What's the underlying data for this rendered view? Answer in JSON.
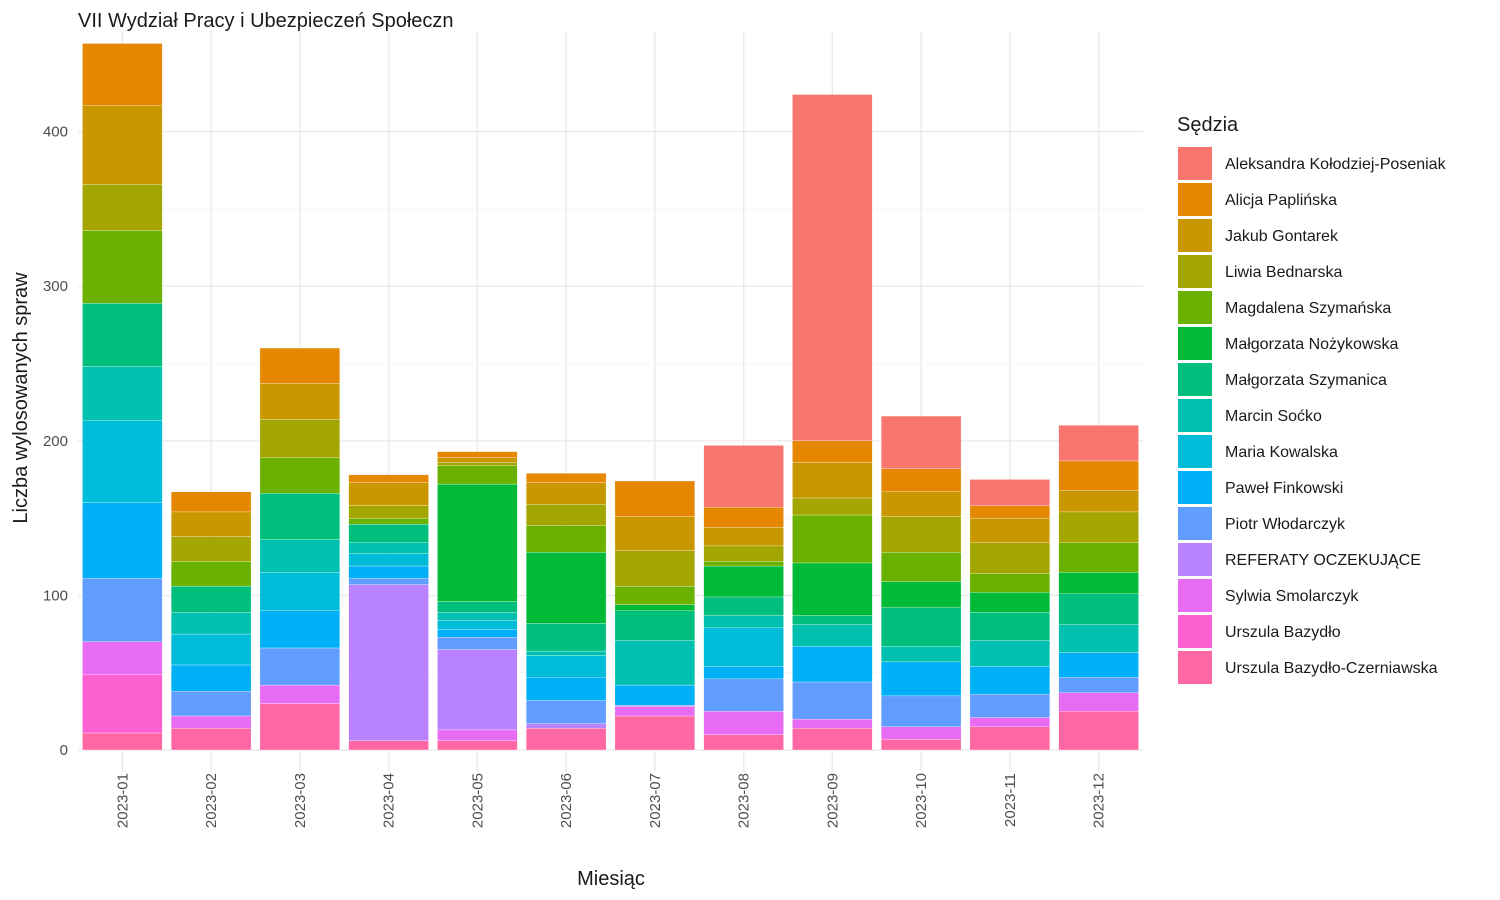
{
  "chart_data": {
    "type": "bar",
    "stacked": true,
    "title": "VII Wydział Pracy i Ubezpieczeń Społeczn",
    "xlabel": "Miesiąc",
    "ylabel": "Liczba wylosowanych spraw",
    "ylim": [
      0,
      460
    ],
    "yticks": [
      0,
      100,
      200,
      300,
      400
    ],
    "grid": true,
    "legend_title": "Sędzia",
    "legend_position": "right",
    "categories": [
      "2023-01",
      "2023-02",
      "2023-03",
      "2023-04",
      "2023-05",
      "2023-06",
      "2023-07",
      "2023-08",
      "2023-09",
      "2023-10",
      "2023-11",
      "2023-12"
    ],
    "series": [
      {
        "name": "Aleksandra Kołodziej-Poseniak",
        "color": "#F8766D",
        "values": [
          0,
          0,
          0,
          0,
          0,
          0,
          0,
          40,
          224,
          34,
          17,
          23
        ]
      },
      {
        "name": "Alicja Paplińska",
        "color": "#E58700",
        "values": [
          40,
          13,
          23,
          5,
          4,
          6,
          23,
          13,
          14,
          15,
          8,
          19
        ]
      },
      {
        "name": "Jakub Gontarek",
        "color": "#C99800",
        "values": [
          51,
          16,
          23,
          15,
          3,
          14,
          22,
          12,
          23,
          16,
          16,
          14
        ]
      },
      {
        "name": "Liwia Bednarska",
        "color": "#A3A500",
        "values": [
          30,
          16,
          25,
          8,
          2,
          14,
          23,
          10,
          11,
          23,
          20,
          20
        ]
      },
      {
        "name": "Magdalena Szymańska",
        "color": "#6BB100",
        "values": [
          47,
          16,
          23,
          4,
          12,
          17,
          12,
          3,
          31,
          19,
          12,
          19
        ]
      },
      {
        "name": "Małgorzata Nożykowska",
        "color": "#00BA38",
        "values": [
          0,
          0,
          0,
          0,
          76,
          46,
          4,
          20,
          34,
          17,
          13,
          14
        ]
      },
      {
        "name": "Małgorzata Szymanica",
        "color": "#00BF7D",
        "values": [
          41,
          17,
          30,
          12,
          7,
          18,
          19,
          12,
          6,
          25,
          18,
          20
        ]
      },
      {
        "name": "Marcin Soćko",
        "color": "#00C0AF",
        "values": [
          35,
          14,
          21,
          7,
          5,
          3,
          29,
          8,
          14,
          10,
          17,
          18
        ]
      },
      {
        "name": "Maria Kowalska",
        "color": "#00BCD8",
        "values": [
          53,
          20,
          25,
          8,
          6,
          14,
          0,
          25,
          0,
          0,
          0,
          0
        ]
      },
      {
        "name": "Paweł Finkowski",
        "color": "#00B0F6",
        "values": [
          49,
          17,
          24,
          8,
          5,
          15,
          13,
          8,
          23,
          22,
          18,
          16
        ]
      },
      {
        "name": "Piotr Włodarczyk",
        "color": "#619CFF",
        "values": [
          41,
          16,
          24,
          4,
          8,
          15,
          0,
          21,
          24,
          20,
          15,
          10
        ]
      },
      {
        "name": "REFERATY OCZEKUJĄCE",
        "color": "#B983FF",
        "values": [
          0,
          0,
          0,
          101,
          52,
          3,
          1,
          0,
          0,
          0,
          0,
          0
        ]
      },
      {
        "name": "Sylwia Smolarczyk",
        "color": "#E76BF3",
        "values": [
          21,
          8,
          12,
          0,
          7,
          0,
          6,
          15,
          6,
          8,
          6,
          12
        ]
      },
      {
        "name": "Urszula Bazydło",
        "color": "#FD61D1",
        "values": [
          38,
          0,
          0,
          0,
          0,
          0,
          0,
          0,
          0,
          0,
          0,
          0
        ]
      },
      {
        "name": "Urszula Bazydło-Czerniawska",
        "color": "#FF67A4",
        "values": [
          11,
          14,
          30,
          6,
          6,
          14,
          22,
          10,
          14,
          7,
          15,
          25
        ]
      }
    ]
  }
}
